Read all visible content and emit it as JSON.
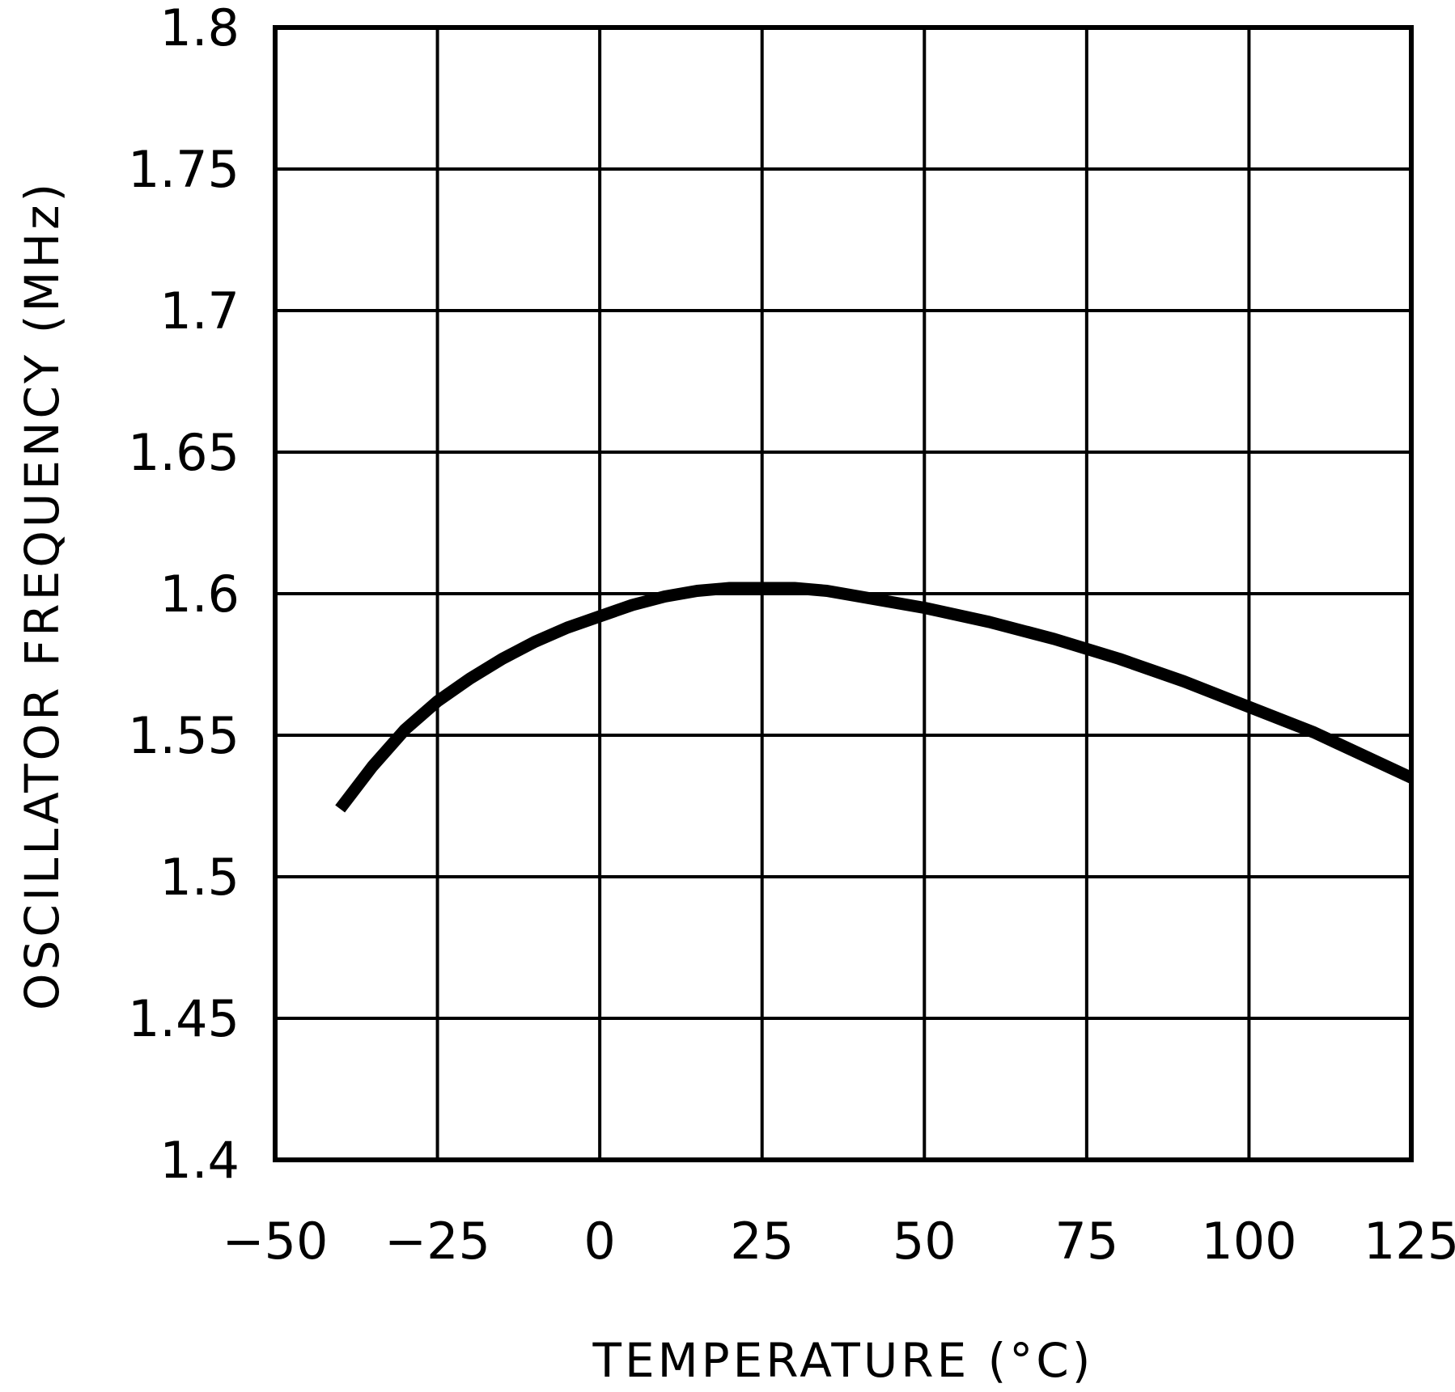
{
  "chart_data": {
    "type": "line",
    "title": "",
    "xlabel": "TEMPERATURE (°C)",
    "ylabel": "OSCILLATOR FREQUENCY (MHz)",
    "xlim": [
      -50,
      125
    ],
    "ylim": [
      1.4,
      1.8
    ],
    "x_ticks": [
      -50,
      -25,
      0,
      25,
      50,
      75,
      100,
      125
    ],
    "y_ticks": [
      1.4,
      1.45,
      1.5,
      1.55,
      1.6,
      1.65,
      1.7,
      1.75,
      1.8
    ],
    "x_tick_labels": [
      "−50",
      "−25",
      "0",
      "25",
      "50",
      "75",
      "100",
      "125"
    ],
    "y_tick_labels": [
      "1.4",
      "1.45",
      "1.5",
      "1.55",
      "1.6",
      "1.65",
      "1.7",
      "1.75",
      "1.8"
    ],
    "grid": true,
    "series": [
      {
        "color": "#000000",
        "x": [
          -40,
          -35,
          -30,
          -25,
          -20,
          -15,
          -10,
          -5,
          0,
          5,
          10,
          15,
          20,
          25,
          30,
          35,
          40,
          50,
          60,
          70,
          80,
          90,
          100,
          110,
          125
        ],
        "y": [
          1.524,
          1.539,
          1.552,
          1.562,
          1.57,
          1.577,
          1.583,
          1.588,
          1.592,
          1.596,
          1.599,
          1.601,
          1.602,
          1.602,
          1.602,
          1.601,
          1.599,
          1.595,
          1.59,
          1.584,
          1.577,
          1.569,
          1.56,
          1.551,
          1.535
        ]
      }
    ]
  }
}
